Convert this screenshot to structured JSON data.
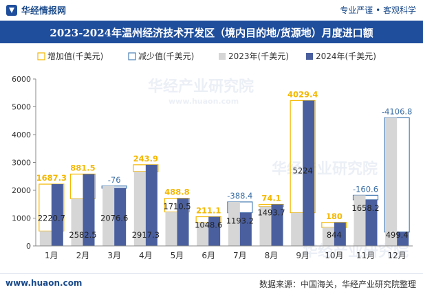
{
  "brand": {
    "name": "华经情报网",
    "tagline": "专业严谨 • 客观科学"
  },
  "title": "2023-2024年温州经济技术开发区（境内目的地/货源地）月度进口额",
  "footer": {
    "website": "www.huaon.com",
    "source": "数据来源：中国海关，华经产业研究院整理"
  },
  "watermark": "华经产业研究院",
  "watermark_url": "www.huaon.com",
  "colors": {
    "increase": "#f5b800",
    "decrease": "#4a7eb5",
    "y2023": "#d6d6d6",
    "y2024": "#4a5f9e",
    "diff_increase_text": "#f5b800",
    "diff_decrease_text": "#3a6ea5"
  },
  "chart_data": {
    "type": "bar",
    "categories": [
      "1月",
      "2月",
      "3月",
      "4月",
      "5月",
      "6月",
      "7月",
      "8月",
      "9月",
      "10月",
      "11月",
      "12月"
    ],
    "series": [
      {
        "name": "2023年(千美元)",
        "values": [
          533.4,
          1701.0,
          2153.0,
          2673.4,
          1221.7,
          837.5,
          1581.6,
          1419.6,
          1194.6,
          664.0,
          1818.8,
          4606.2
        ]
      },
      {
        "name": "2024年(千美元)",
        "values": [
          2220.7,
          2582.5,
          2076.6,
          2917.3,
          1710.5,
          1048.6,
          1193.2,
          1493.7,
          5224,
          844,
          1658.2,
          499.4
        ]
      }
    ],
    "differences": [
      1687.3,
      881.5,
      -76,
      243.9,
      488.8,
      211.1,
      -388.4,
      74.1,
      4029.4,
      180,
      -160.6,
      -4106.8
    ],
    "difference_labels": [
      "1687.3",
      "881.5",
      "-76",
      "243.9",
      "488.8",
      "211.1",
      "-388.4",
      "74.1",
      "4029.4",
      "180",
      "-160.6",
      "-4106.8"
    ],
    "value_labels_2024": [
      "2220.7",
      "2582.5",
      "2076.6",
      "2917.3",
      "1710.5",
      "1048.6",
      "1193.2",
      "1493.7",
      "5224",
      "844",
      "1658.2",
      "499.4"
    ],
    "legend": [
      "增加值(千美元)",
      "减少值(千美元)",
      "2023年(千美元)",
      "2024年(千美元)"
    ],
    "legend_position": "top-left",
    "ylim": [
      0,
      6000
    ],
    "yticks": [
      0,
      1000,
      2000,
      3000,
      4000,
      5000,
      6000
    ],
    "ytick_labels": [
      "0",
      "1000",
      "2000",
      "3000",
      "4000",
      "5000",
      "6000"
    ],
    "grid": false
  }
}
